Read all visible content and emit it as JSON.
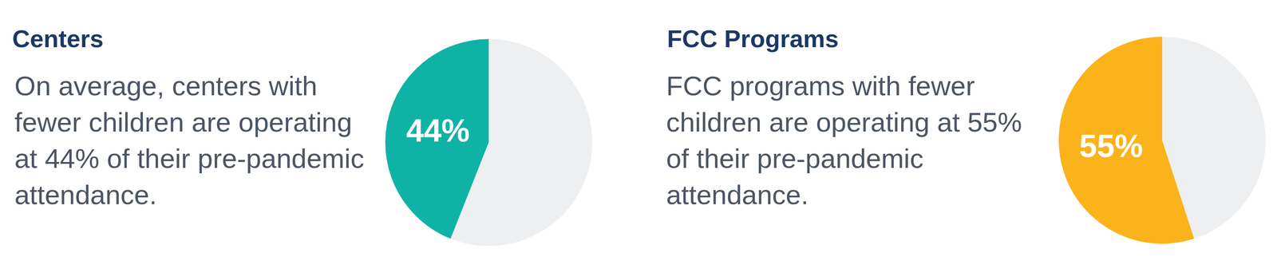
{
  "chart_data": [
    {
      "type": "pie",
      "title": "Centers",
      "subtitle": "On average, centers with fewer children are operating at 44% of their pre-pandemic attendance.",
      "values": [
        44,
        56
      ],
      "colors": [
        "#0fb3a6",
        "#eeeff1"
      ],
      "value_labels": [
        "44%",
        null
      ],
      "legend": false
    },
    {
      "type": "pie",
      "title": "FCC Programs",
      "subtitle": "FCC programs with fewer children are operating at 55% of their pre-pandemic attendance.",
      "values": [
        55,
        45
      ],
      "colors": [
        "#fbb31b",
        "#eeeff1"
      ],
      "value_labels": [
        "55%",
        null
      ],
      "legend": false
    }
  ]
}
